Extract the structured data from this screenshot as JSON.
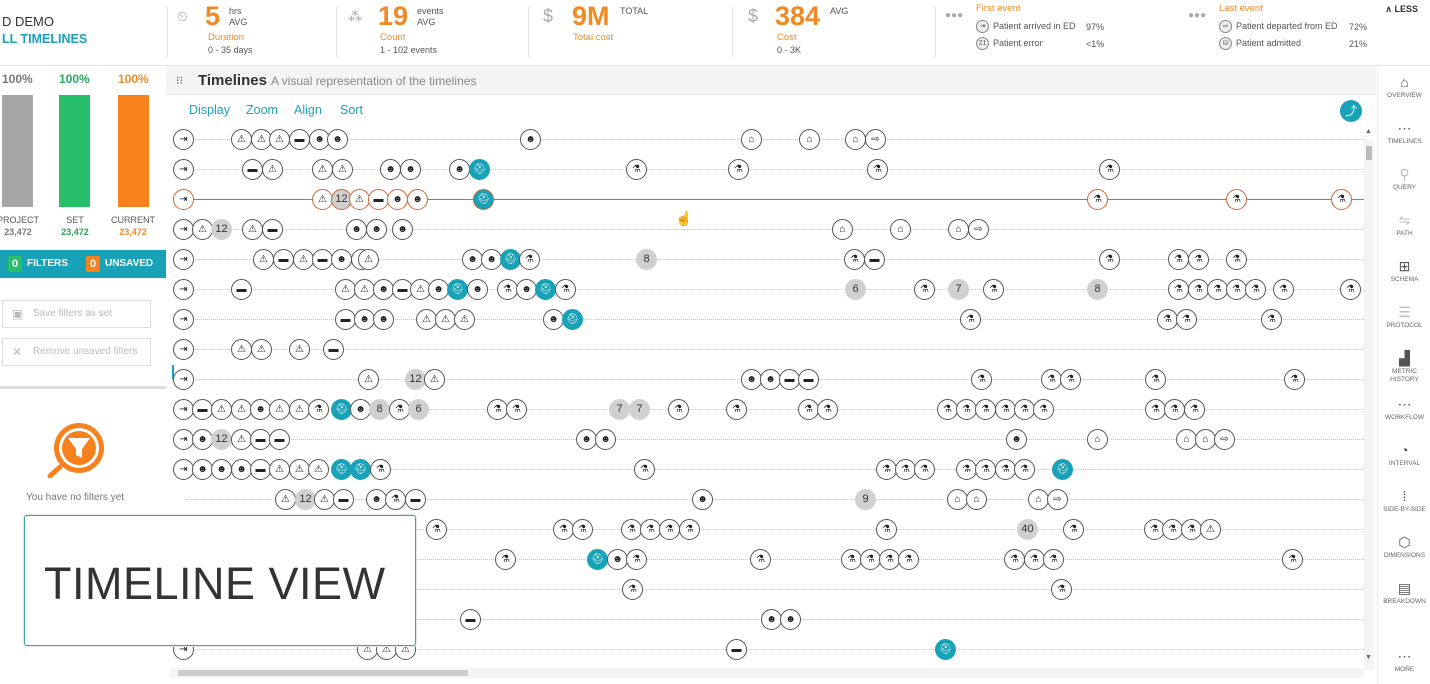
{
  "project": {
    "name": "D DEMO",
    "link": "LL TIMELINES"
  },
  "kpis": [
    {
      "icon": "clock-icon",
      "value": "5",
      "unit_top": "hrs",
      "unit_bottom": "AVG",
      "label": "Duration",
      "sub": "0 - 35 days"
    },
    {
      "icon": "events-icon",
      "value": "19",
      "unit_top": "events",
      "unit_bottom": "AVG",
      "label": "Count",
      "sub": "1 - 102 events"
    },
    {
      "icon": "dollar-icon",
      "value": "9M",
      "unit_top": "TOTAL",
      "unit_bottom": "",
      "label": "Total cost",
      "sub": ""
    },
    {
      "icon": "dollar-icon",
      "value": "384",
      "unit_top": "AVG",
      "unit_bottom": "",
      "label": "Cost",
      "sub": "0 - 3K"
    }
  ],
  "first_event": {
    "title": "First event",
    "rows": [
      {
        "badge": "",
        "label": "Patient arrived in ED",
        "value": "97%"
      },
      {
        "badge": "21",
        "label": "Patient error",
        "value": "<1%"
      }
    ]
  },
  "last_event": {
    "title": "Last event",
    "rows": [
      {
        "label": "Patient departed from ED",
        "value": "72%"
      },
      {
        "label": "Patient admitted",
        "value": "21%"
      }
    ]
  },
  "less_label": "LESS",
  "left_panel": {
    "bars": [
      {
        "pct": "100%",
        "label": "PROJECT",
        "value": "23,472",
        "color": "#a6a6a6",
        "pct_color": "#777777"
      },
      {
        "pct": "100%",
        "label": "SET",
        "value": "23,472",
        "color": "#27bf6a",
        "pct_color": "#27a35c"
      },
      {
        "pct": "100%",
        "label": "CURRENT",
        "value": "23,472",
        "color": "#f7811c",
        "pct_color": "#f08a24"
      }
    ],
    "filters_count": "0",
    "filters_label": "FILTERS",
    "unsaved_count": "0",
    "unsaved_label": "UNSAVED",
    "save_button": "Save filters as set",
    "remove_button": "Remove unsaved filters",
    "no_filters_text": "You have no filters yet"
  },
  "timeline_header": {
    "title": "Timelines",
    "subtitle": "A visual representation of the timelines"
  },
  "timeline_menu": [
    "Display",
    "Zoom",
    "Align",
    "Sort"
  ],
  "right_nav": [
    {
      "icon": "⌂",
      "label": "OVERVIEW",
      "dim": false
    },
    {
      "icon": "⋯",
      "label": "TIMELINES",
      "dim": false
    },
    {
      "icon": "⚲",
      "label": "QUERY",
      "dim": true
    },
    {
      "icon": "⇋",
      "label": "PATH",
      "dim": true
    },
    {
      "icon": "⊞",
      "label": "SCHEMA",
      "dim": false
    },
    {
      "icon": "☰",
      "label": "PROTOCOL",
      "dim": true
    },
    {
      "icon": "▟",
      "label": "METRIC HISTORY",
      "dim": false
    },
    {
      "icon": "⋯",
      "label": "WORKFLOW",
      "dim": false
    },
    {
      "icon": "◔",
      "label": "INTERVAL",
      "dim": false
    },
    {
      "icon": "⁞",
      "label": "SIDE-BY-SIDE",
      "dim": false
    },
    {
      "icon": "⬡",
      "label": "DIMENSIONS",
      "dim": false
    },
    {
      "icon": "▤",
      "label": "BREAKDOWN",
      "dim": false
    },
    {
      "icon": "⋯",
      "label": "MORE",
      "dim": false
    }
  ],
  "overlay_text": "TIMELINE VIEW",
  "timeline_rows": [
    {
      "selected": false,
      "events": [
        [
          17,
          "E"
        ],
        [
          75,
          "T"
        ],
        [
          95,
          "W"
        ],
        [
          113,
          "T"
        ],
        [
          133,
          "B"
        ],
        [
          153,
          "D"
        ],
        [
          171,
          "D"
        ],
        [
          364,
          "D"
        ],
        [
          585,
          "H"
        ],
        [
          643,
          "H"
        ],
        [
          689,
          "H"
        ],
        [
          709,
          "X"
        ]
      ]
    },
    {
      "selected": false,
      "events": [
        [
          17,
          "E"
        ],
        [
          86,
          "B"
        ],
        [
          106,
          "T"
        ],
        [
          156,
          "W"
        ],
        [
          176,
          "T"
        ],
        [
          224,
          "D"
        ],
        [
          244,
          "D"
        ],
        [
          293,
          "D"
        ],
        [
          313,
          "C"
        ],
        [
          470,
          "S"
        ],
        [
          572,
          "S"
        ],
        [
          711,
          "S"
        ],
        [
          943,
          "S"
        ]
      ]
    },
    {
      "selected": true,
      "events": [
        [
          17,
          "E"
        ],
        [
          156,
          "T"
        ],
        [
          175,
          "12"
        ],
        [
          193,
          "T"
        ],
        [
          212,
          "B"
        ],
        [
          231,
          "D"
        ],
        [
          251,
          "D"
        ],
        [
          317,
          "C"
        ],
        [
          931,
          "S"
        ],
        [
          1070,
          "S"
        ],
        [
          1175,
          "S"
        ]
      ]
    },
    {
      "selected": false,
      "events": [
        [
          17,
          "E"
        ],
        [
          36,
          "T"
        ],
        [
          55,
          "12"
        ],
        [
          86,
          "T"
        ],
        [
          106,
          "B"
        ],
        [
          190,
          "D"
        ],
        [
          210,
          "D"
        ],
        [
          236,
          "D"
        ],
        [
          676,
          "H"
        ],
        [
          734,
          "H"
        ],
        [
          792,
          "H"
        ],
        [
          812,
          "X"
        ]
      ]
    },
    {
      "selected": false,
      "events": [
        [
          17,
          "E"
        ],
        [
          97,
          "T"
        ],
        [
          117,
          "B"
        ],
        [
          137,
          "W"
        ],
        [
          156,
          "B"
        ],
        [
          175,
          "D"
        ],
        [
          195,
          "D"
        ],
        [
          202,
          "T"
        ],
        [
          306,
          "D"
        ],
        [
          325,
          "D"
        ],
        [
          344,
          "C"
        ],
        [
          363,
          "S"
        ],
        [
          480,
          "8"
        ],
        [
          688,
          "S"
        ],
        [
          708,
          "B"
        ],
        [
          943,
          "S"
        ],
        [
          1012,
          "S"
        ],
        [
          1032,
          "S"
        ],
        [
          1070,
          "S"
        ]
      ]
    },
    {
      "selected": false,
      "events": [
        [
          17,
          "E"
        ],
        [
          75,
          "B"
        ],
        [
          179,
          "T"
        ],
        [
          198,
          "W"
        ],
        [
          217,
          "D"
        ],
        [
          236,
          "B"
        ],
        [
          254,
          "T"
        ],
        [
          272,
          "D"
        ],
        [
          291,
          "C"
        ],
        [
          311,
          "D"
        ],
        [
          341,
          "S"
        ],
        [
          360,
          "D"
        ],
        [
          379,
          "C"
        ],
        [
          399,
          "S"
        ],
        [
          689,
          "6"
        ],
        [
          758,
          "S"
        ],
        [
          792,
          "7"
        ],
        [
          827,
          "S"
        ],
        [
          931,
          "8"
        ],
        [
          1012,
          "S"
        ],
        [
          1032,
          "S"
        ],
        [
          1051,
          "S"
        ],
        [
          1070,
          "S"
        ],
        [
          1089,
          "S"
        ],
        [
          1117,
          "S"
        ],
        [
          1184,
          "S"
        ]
      ]
    },
    {
      "selected": false,
      "events": [
        [
          17,
          "E"
        ],
        [
          179,
          "B"
        ],
        [
          198,
          "D"
        ],
        [
          217,
          "D"
        ],
        [
          260,
          "T"
        ],
        [
          279,
          "W"
        ],
        [
          298,
          "T"
        ],
        [
          387,
          "D"
        ],
        [
          406,
          "C"
        ],
        [
          804,
          "S"
        ],
        [
          1001,
          "S"
        ],
        [
          1020,
          "S"
        ],
        [
          1105,
          "S"
        ]
      ]
    },
    {
      "selected": false,
      "events": [
        [
          17,
          "E"
        ],
        [
          75,
          "T"
        ],
        [
          95,
          "W"
        ],
        [
          133,
          "T"
        ],
        [
          167,
          "B"
        ]
      ]
    },
    {
      "selected": false,
      "events": [
        [
          17,
          "E"
        ],
        [
          202,
          "T"
        ],
        [
          249,
          "12"
        ],
        [
          268,
          "T"
        ],
        [
          585,
          "D"
        ],
        [
          604,
          "D"
        ],
        [
          623,
          "B"
        ],
        [
          642,
          "B"
        ],
        [
          815,
          "S"
        ],
        [
          885,
          "S"
        ],
        [
          904,
          "S"
        ],
        [
          989,
          "S"
        ],
        [
          1128,
          "S"
        ]
      ]
    },
    {
      "selected": false,
      "events": [
        [
          17,
          "E"
        ],
        [
          36,
          "B"
        ],
        [
          55,
          "T"
        ],
        [
          75,
          "T"
        ],
        [
          94,
          "D"
        ],
        [
          113,
          "W"
        ],
        [
          133,
          "T"
        ],
        [
          152,
          "S"
        ],
        [
          175,
          "C"
        ],
        [
          194,
          "D"
        ],
        [
          213,
          "8"
        ],
        [
          233,
          "S"
        ],
        [
          252,
          "6"
        ],
        [
          331,
          "S"
        ],
        [
          350,
          "S"
        ],
        [
          453,
          "7"
        ],
        [
          473,
          "7"
        ],
        [
          512,
          "S"
        ],
        [
          570,
          "S"
        ],
        [
          642,
          "S"
        ],
        [
          661,
          "S"
        ],
        [
          781,
          "S"
        ],
        [
          800,
          "S"
        ],
        [
          819,
          "S"
        ],
        [
          839,
          "S"
        ],
        [
          858,
          "S"
        ],
        [
          877,
          "S"
        ],
        [
          989,
          "S"
        ],
        [
          1008,
          "S"
        ],
        [
          1028,
          "S"
        ]
      ]
    },
    {
      "selected": false,
      "events": [
        [
          17,
          "E"
        ],
        [
          36,
          "D"
        ],
        [
          55,
          "12"
        ],
        [
          75,
          "T"
        ],
        [
          94,
          "B"
        ],
        [
          113,
          "B"
        ],
        [
          420,
          "D"
        ],
        [
          439,
          "D"
        ],
        [
          850,
          "D"
        ],
        [
          931,
          "H"
        ],
        [
          1020,
          "H"
        ],
        [
          1039,
          "H"
        ],
        [
          1058,
          "X"
        ]
      ]
    },
    {
      "selected": false,
      "events": [
        [
          17,
          "E"
        ],
        [
          36,
          "D"
        ],
        [
          55,
          "D"
        ],
        [
          75,
          "D"
        ],
        [
          94,
          "B"
        ],
        [
          113,
          "T"
        ],
        [
          133,
          "W"
        ],
        [
          152,
          "T"
        ],
        [
          175,
          "C"
        ],
        [
          194,
          "C"
        ],
        [
          214,
          "S"
        ],
        [
          478,
          "S"
        ],
        [
          720,
          "S"
        ],
        [
          739,
          "S"
        ],
        [
          758,
          "S"
        ],
        [
          800,
          "S"
        ],
        [
          819,
          "S"
        ],
        [
          839,
          "S"
        ],
        [
          858,
          "S"
        ],
        [
          896,
          "C"
        ]
      ]
    },
    {
      "selected": false,
      "events": [
        [
          119,
          "T"
        ],
        [
          139,
          "12"
        ],
        [
          158,
          "T"
        ],
        [
          177,
          "B"
        ],
        [
          210,
          "D"
        ],
        [
          229,
          "S"
        ],
        [
          249,
          "B"
        ],
        [
          536,
          "D"
        ],
        [
          699,
          "9"
        ],
        [
          791,
          "H"
        ],
        [
          810,
          "H"
        ],
        [
          872,
          "H"
        ],
        [
          891,
          "X"
        ]
      ]
    },
    {
      "selected": false,
      "events": [
        [
          270,
          "S"
        ],
        [
          397,
          "S"
        ],
        [
          416,
          "S"
        ],
        [
          465,
          "S"
        ],
        [
          484,
          "S"
        ],
        [
          503,
          "S"
        ],
        [
          523,
          "S"
        ],
        [
          720,
          "S"
        ],
        [
          861,
          "40"
        ],
        [
          907,
          "S"
        ],
        [
          988,
          "S"
        ],
        [
          1006,
          "S"
        ],
        [
          1025,
          "S"
        ],
        [
          1044,
          "W"
        ]
      ]
    },
    {
      "selected": false,
      "events": [
        [
          339,
          "S"
        ],
        [
          431,
          "C"
        ],
        [
          451,
          "D"
        ],
        [
          470,
          "S"
        ],
        [
          594,
          "S"
        ],
        [
          685,
          "S"
        ],
        [
          704,
          "S"
        ],
        [
          723,
          "S"
        ],
        [
          742,
          "S"
        ],
        [
          848,
          "S"
        ],
        [
          868,
          "S"
        ],
        [
          887,
          "S"
        ],
        [
          1126,
          "S"
        ]
      ]
    },
    {
      "selected": false,
      "events": [
        [
          466,
          "S"
        ],
        [
          895,
          "S"
        ]
      ]
    },
    {
      "selected": false,
      "events": [
        [
          304,
          "B"
        ],
        [
          605,
          "D"
        ],
        [
          624,
          "D"
        ]
      ]
    },
    {
      "selected": false,
      "events": [
        [
          17,
          "E"
        ],
        [
          201,
          "T"
        ],
        [
          220,
          "W"
        ],
        [
          239,
          "T"
        ],
        [
          570,
          "B"
        ],
        [
          779,
          "C"
        ]
      ]
    }
  ]
}
